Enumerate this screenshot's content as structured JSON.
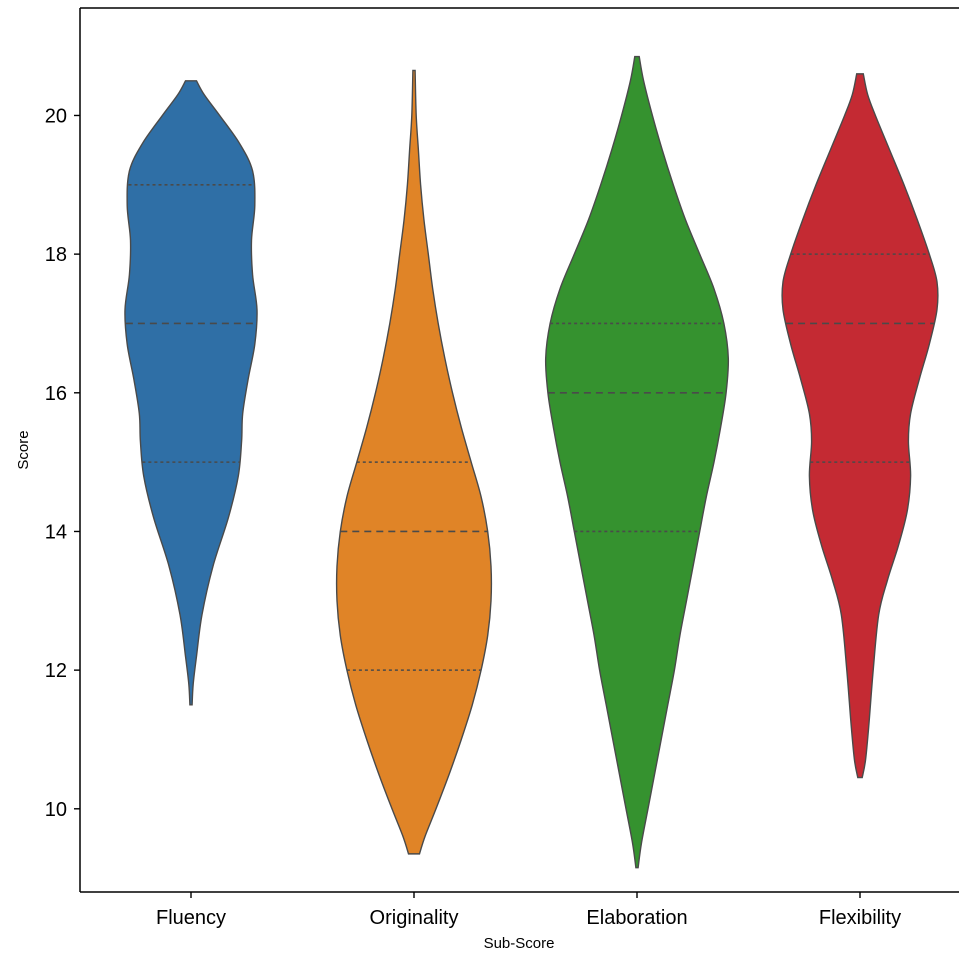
{
  "chart_data": {
    "type": "violin",
    "title": "",
    "xlabel": "Sub-Score",
    "ylabel": "Score",
    "ylim": [
      8.8,
      21.55
    ],
    "yticks": [
      10,
      12,
      14,
      16,
      18,
      20
    ],
    "categories": [
      "Fluency",
      "Originality",
      "Elaboration",
      "Flexibility"
    ],
    "grid": false,
    "violins": [
      {
        "category": "Fluency",
        "color": "#2f6fa6",
        "min": 11.5,
        "max": 20.5,
        "quartiles": [
          15,
          17,
          19
        ],
        "profile": [
          [
            11.5,
            0.01
          ],
          [
            11.8,
            0.02
          ],
          [
            12.2,
            0.05
          ],
          [
            12.8,
            0.1
          ],
          [
            13.5,
            0.2
          ],
          [
            14.2,
            0.34
          ],
          [
            14.8,
            0.43
          ],
          [
            15.3,
            0.46
          ],
          [
            15.7,
            0.47
          ],
          [
            16.2,
            0.52
          ],
          [
            16.7,
            0.58
          ],
          [
            17.2,
            0.6
          ],
          [
            17.7,
            0.56
          ],
          [
            18.2,
            0.55
          ],
          [
            18.7,
            0.58
          ],
          [
            19.2,
            0.56
          ],
          [
            19.6,
            0.44
          ],
          [
            20.0,
            0.26
          ],
          [
            20.3,
            0.12
          ],
          [
            20.5,
            0.05
          ]
        ]
      },
      {
        "category": "Originality",
        "color": "#e08427",
        "min": 9.35,
        "max": 20.65,
        "quartiles": [
          12,
          14,
          15
        ],
        "profile": [
          [
            9.35,
            0.05
          ],
          [
            9.6,
            0.1
          ],
          [
            10.0,
            0.2
          ],
          [
            10.5,
            0.32
          ],
          [
            11.0,
            0.43
          ],
          [
            11.5,
            0.53
          ],
          [
            12.0,
            0.61
          ],
          [
            12.5,
            0.67
          ],
          [
            13.0,
            0.7
          ],
          [
            13.5,
            0.7
          ],
          [
            14.0,
            0.67
          ],
          [
            14.5,
            0.61
          ],
          [
            15.0,
            0.52
          ],
          [
            15.5,
            0.43
          ],
          [
            16.0,
            0.35
          ],
          [
            16.5,
            0.28
          ],
          [
            17.0,
            0.22
          ],
          [
            17.5,
            0.17
          ],
          [
            18.0,
            0.13
          ],
          [
            18.5,
            0.09
          ],
          [
            19.0,
            0.06
          ],
          [
            19.5,
            0.04
          ],
          [
            20.0,
            0.02
          ],
          [
            20.65,
            0.01
          ]
        ]
      },
      {
        "category": "Elaboration",
        "color": "#35922f",
        "min": 9.15,
        "max": 20.85,
        "quartiles": [
          14,
          16,
          17
        ],
        "profile": [
          [
            9.15,
            0.01
          ],
          [
            9.5,
            0.04
          ],
          [
            10.0,
            0.1
          ],
          [
            10.5,
            0.16
          ],
          [
            11.0,
            0.22
          ],
          [
            11.5,
            0.28
          ],
          [
            12.0,
            0.34
          ],
          [
            12.5,
            0.39
          ],
          [
            13.0,
            0.45
          ],
          [
            13.5,
            0.51
          ],
          [
            14.0,
            0.57
          ],
          [
            14.5,
            0.63
          ],
          [
            15.0,
            0.7
          ],
          [
            15.5,
            0.76
          ],
          [
            16.0,
            0.81
          ],
          [
            16.5,
            0.83
          ],
          [
            17.0,
            0.79
          ],
          [
            17.5,
            0.7
          ],
          [
            18.0,
            0.57
          ],
          [
            18.5,
            0.44
          ],
          [
            19.0,
            0.33
          ],
          [
            19.5,
            0.23
          ],
          [
            20.0,
            0.14
          ],
          [
            20.5,
            0.06
          ],
          [
            20.85,
            0.02
          ]
        ]
      },
      {
        "category": "Flexibility",
        "color": "#c42a33",
        "min": 10.45,
        "max": 20.6,
        "quartiles": [
          15,
          17,
          18
        ],
        "profile": [
          [
            10.45,
            0.02
          ],
          [
            10.7,
            0.05
          ],
          [
            11.2,
            0.08
          ],
          [
            12.0,
            0.12
          ],
          [
            12.8,
            0.17
          ],
          [
            13.3,
            0.25
          ],
          [
            13.8,
            0.35
          ],
          [
            14.3,
            0.43
          ],
          [
            14.8,
            0.46
          ],
          [
            15.3,
            0.44
          ],
          [
            15.7,
            0.46
          ],
          [
            16.2,
            0.54
          ],
          [
            16.7,
            0.63
          ],
          [
            17.2,
            0.7
          ],
          [
            17.6,
            0.7
          ],
          [
            18.0,
            0.63
          ],
          [
            18.5,
            0.52
          ],
          [
            19.0,
            0.4
          ],
          [
            19.5,
            0.27
          ],
          [
            20.0,
            0.14
          ],
          [
            20.3,
            0.07
          ],
          [
            20.6,
            0.03
          ]
        ]
      }
    ]
  }
}
